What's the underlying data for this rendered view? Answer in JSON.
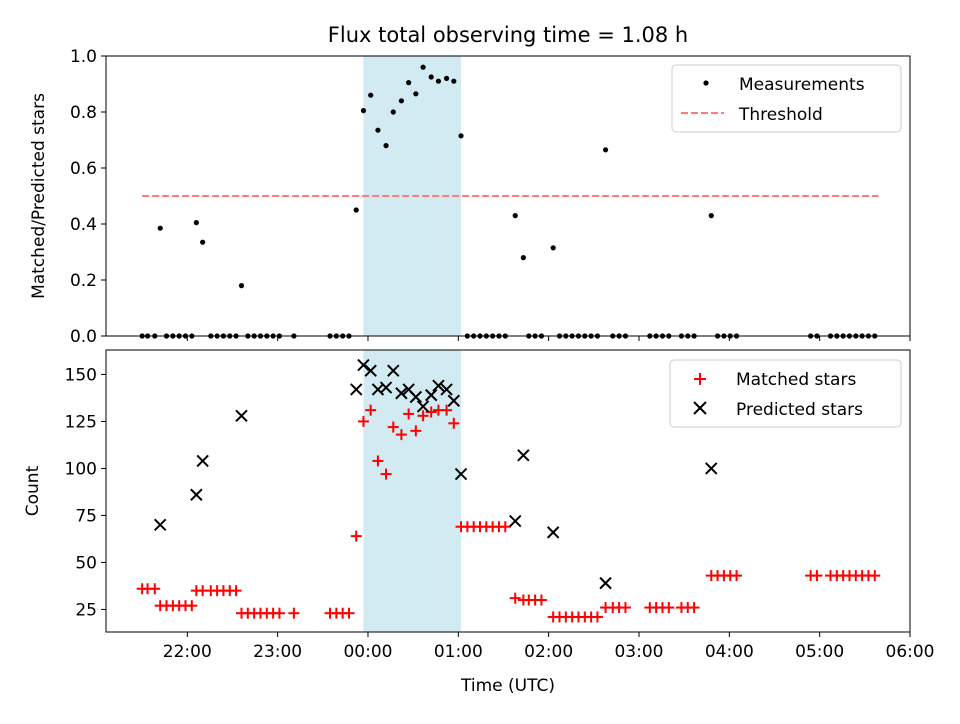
{
  "chart_data": {
    "title": "Flux total observing time = 1.08 h",
    "xlabel": "Time (UTC)",
    "x_unit": "hours relative to 00:00 UTC",
    "xlim": [
      -2.9,
      6.0
    ],
    "x_ticks": [
      {
        "value": -2,
        "label": "22:00"
      },
      {
        "value": -1,
        "label": "23:00"
      },
      {
        "value": 0,
        "label": "00:00"
      },
      {
        "value": 1,
        "label": "01:00"
      },
      {
        "value": 2,
        "label": "02:00"
      },
      {
        "value": 3,
        "label": "03:00"
      },
      {
        "value": 4,
        "label": "04:00"
      },
      {
        "value": 5,
        "label": "05:00"
      },
      {
        "value": 6,
        "label": "06:00"
      }
    ],
    "shaded_span": {
      "start": -0.05,
      "end": 1.03,
      "color": "#add8e6"
    },
    "panels": [
      {
        "id": "ratio",
        "type": "scatter",
        "ylabel": "Matched/Predicted stars",
        "ylim": [
          0,
          1.0
        ],
        "y_ticks": [
          {
            "value": 0.0,
            "label": "0.0"
          },
          {
            "value": 0.2,
            "label": "0.2"
          },
          {
            "value": 0.4,
            "label": "0.4"
          },
          {
            "value": 0.6,
            "label": "0.6"
          },
          {
            "value": 0.8,
            "label": "0.8"
          },
          {
            "value": 1.0,
            "label": "1.0"
          }
        ],
        "legend": [
          {
            "label": "Measurements",
            "marker": "dot",
            "color": "#000000"
          },
          {
            "label": "Threshold",
            "marker": "dashed-line",
            "color": "#ff7b7b"
          }
        ],
        "threshold": {
          "value": 0.5,
          "x_start": -2.5,
          "x_end": 5.65
        },
        "series": [
          {
            "name": "Measurements",
            "color": "#000000",
            "points": [
              [
                -2.5,
                0
              ],
              [
                -2.44,
                0
              ],
              [
                -2.36,
                0
              ],
              [
                -2.3,
                0.385
              ],
              [
                -2.23,
                0
              ],
              [
                -2.16,
                0
              ],
              [
                -2.09,
                0
              ],
              [
                -2.02,
                0
              ],
              [
                -1.95,
                0
              ],
              [
                -1.9,
                0.405
              ],
              [
                -1.83,
                0.335
              ],
              [
                -1.74,
                0
              ],
              [
                -1.67,
                0
              ],
              [
                -1.6,
                0
              ],
              [
                -1.53,
                0
              ],
              [
                -1.46,
                0
              ],
              [
                -1.4,
                0.18
              ],
              [
                -1.33,
                0
              ],
              [
                -1.26,
                0
              ],
              [
                -1.19,
                0
              ],
              [
                -1.12,
                0
              ],
              [
                -1.05,
                0
              ],
              [
                -0.98,
                0
              ],
              [
                -0.82,
                0
              ],
              [
                -0.42,
                0
              ],
              [
                -0.35,
                0
              ],
              [
                -0.28,
                0
              ],
              [
                -0.21,
                0
              ],
              [
                -0.13,
                0.45
              ],
              [
                -0.05,
                0.805
              ],
              [
                0.03,
                0.86
              ],
              [
                0.11,
                0.735
              ],
              [
                0.2,
                0.68
              ],
              [
                0.28,
                0.8
              ],
              [
                0.37,
                0.84
              ],
              [
                0.45,
                0.905
              ],
              [
                0.53,
                0.865
              ],
              [
                0.61,
                0.96
              ],
              [
                0.7,
                0.925
              ],
              [
                0.78,
                0.91
              ],
              [
                0.87,
                0.92
              ],
              [
                0.95,
                0.91
              ],
              [
                1.03,
                0.715
              ],
              [
                1.1,
                0
              ],
              [
                1.17,
                0
              ],
              [
                1.24,
                0
              ],
              [
                1.31,
                0
              ],
              [
                1.38,
                0
              ],
              [
                1.45,
                0
              ],
              [
                1.52,
                0
              ],
              [
                1.63,
                0.43
              ],
              [
                1.72,
                0.28
              ],
              [
                1.78,
                0
              ],
              [
                1.85,
                0
              ],
              [
                1.92,
                0
              ],
              [
                2.05,
                0.315
              ],
              [
                2.12,
                0
              ],
              [
                2.19,
                0
              ],
              [
                2.26,
                0
              ],
              [
                2.33,
                0
              ],
              [
                2.4,
                0
              ],
              [
                2.47,
                0
              ],
              [
                2.54,
                0
              ],
              [
                2.63,
                0.665
              ],
              [
                2.71,
                0
              ],
              [
                2.78,
                0
              ],
              [
                2.85,
                0
              ],
              [
                3.12,
                0
              ],
              [
                3.19,
                0
              ],
              [
                3.26,
                0
              ],
              [
                3.33,
                0
              ],
              [
                3.47,
                0
              ],
              [
                3.54,
                0
              ],
              [
                3.61,
                0
              ],
              [
                3.8,
                0.43
              ],
              [
                3.87,
                0
              ],
              [
                3.94,
                0
              ],
              [
                4.01,
                0
              ],
              [
                4.08,
                0
              ],
              [
                4.9,
                0
              ],
              [
                4.97,
                0
              ],
              [
                5.12,
                0
              ],
              [
                5.19,
                0
              ],
              [
                5.26,
                0
              ],
              [
                5.33,
                0
              ],
              [
                5.4,
                0
              ],
              [
                5.47,
                0
              ],
              [
                5.54,
                0
              ],
              [
                5.61,
                0
              ]
            ]
          }
        ]
      },
      {
        "id": "counts",
        "type": "scatter",
        "ylabel": "Count",
        "ylim": [
          13,
          163
        ],
        "y_ticks": [
          {
            "value": 25,
            "label": "25"
          },
          {
            "value": 50,
            "label": "50"
          },
          {
            "value": 75,
            "label": "75"
          },
          {
            "value": 100,
            "label": "100"
          },
          {
            "value": 125,
            "label": "125"
          },
          {
            "value": 150,
            "label": "150"
          }
        ],
        "legend": [
          {
            "label": "Matched stars",
            "marker": "plus",
            "color": "#ff0000"
          },
          {
            "label": "Predicted stars",
            "marker": "x",
            "color": "#000000"
          }
        ],
        "series": [
          {
            "name": "Matched stars",
            "marker": "plus",
            "color": "#ff0000",
            "points": [
              [
                -2.5,
                36
              ],
              [
                -2.44,
                36
              ],
              [
                -2.36,
                36
              ],
              [
                -2.3,
                27
              ],
              [
                -2.23,
                27
              ],
              [
                -2.16,
                27
              ],
              [
                -2.09,
                27
              ],
              [
                -2.02,
                27
              ],
              [
                -1.95,
                27
              ],
              [
                -1.9,
                35
              ],
              [
                -1.83,
                35
              ],
              [
                -1.74,
                35
              ],
              [
                -1.67,
                35
              ],
              [
                -1.6,
                35
              ],
              [
                -1.53,
                35
              ],
              [
                -1.46,
                35
              ],
              [
                -1.4,
                23
              ],
              [
                -1.33,
                23
              ],
              [
                -1.26,
                23
              ],
              [
                -1.19,
                23
              ],
              [
                -1.12,
                23
              ],
              [
                -1.05,
                23
              ],
              [
                -0.98,
                23
              ],
              [
                -0.82,
                23
              ],
              [
                -0.42,
                23
              ],
              [
                -0.35,
                23
              ],
              [
                -0.28,
                23
              ],
              [
                -0.21,
                23
              ],
              [
                -0.13,
                64
              ],
              [
                -0.05,
                125
              ],
              [
                0.03,
                131
              ],
              [
                0.11,
                104
              ],
              [
                0.2,
                97
              ],
              [
                0.28,
                122
              ],
              [
                0.37,
                118
              ],
              [
                0.45,
                129
              ],
              [
                0.53,
                120
              ],
              [
                0.61,
                128
              ],
              [
                0.7,
                130
              ],
              [
                0.78,
                131
              ],
              [
                0.87,
                131
              ],
              [
                0.95,
                124
              ],
              [
                1.03,
                69
              ],
              [
                1.1,
                69
              ],
              [
                1.17,
                69
              ],
              [
                1.24,
                69
              ],
              [
                1.31,
                69
              ],
              [
                1.38,
                69
              ],
              [
                1.45,
                69
              ],
              [
                1.52,
                69
              ],
              [
                1.63,
                31
              ],
              [
                1.72,
                30
              ],
              [
                1.78,
                30
              ],
              [
                1.85,
                30
              ],
              [
                1.92,
                30
              ],
              [
                2.05,
                21
              ],
              [
                2.12,
                21
              ],
              [
                2.19,
                21
              ],
              [
                2.26,
                21
              ],
              [
                2.33,
                21
              ],
              [
                2.4,
                21
              ],
              [
                2.47,
                21
              ],
              [
                2.54,
                21
              ],
              [
                2.63,
                26
              ],
              [
                2.71,
                26
              ],
              [
                2.78,
                26
              ],
              [
                2.85,
                26
              ],
              [
                3.12,
                26
              ],
              [
                3.19,
                26
              ],
              [
                3.26,
                26
              ],
              [
                3.33,
                26
              ],
              [
                3.47,
                26
              ],
              [
                3.54,
                26
              ],
              [
                3.61,
                26
              ],
              [
                3.8,
                43
              ],
              [
                3.87,
                43
              ],
              [
                3.94,
                43
              ],
              [
                4.01,
                43
              ],
              [
                4.08,
                43
              ],
              [
                4.9,
                43
              ],
              [
                4.97,
                43
              ],
              [
                5.12,
                43
              ],
              [
                5.19,
                43
              ],
              [
                5.26,
                43
              ],
              [
                5.33,
                43
              ],
              [
                5.4,
                43
              ],
              [
                5.47,
                43
              ],
              [
                5.54,
                43
              ],
              [
                5.61,
                43
              ]
            ]
          },
          {
            "name": "Predicted stars",
            "marker": "x",
            "color": "#000000",
            "points": [
              [
                -2.3,
                70
              ],
              [
                -1.9,
                86
              ],
              [
                -1.83,
                104
              ],
              [
                -1.4,
                128
              ],
              [
                -0.13,
                142
              ],
              [
                -0.05,
                155
              ],
              [
                0.03,
                152
              ],
              [
                0.11,
                142
              ],
              [
                0.2,
                143
              ],
              [
                0.28,
                152
              ],
              [
                0.37,
                140
              ],
              [
                0.45,
                142
              ],
              [
                0.53,
                138
              ],
              [
                0.61,
                133
              ],
              [
                0.7,
                139
              ],
              [
                0.78,
                144
              ],
              [
                0.87,
                142
              ],
              [
                0.95,
                136
              ],
              [
                1.03,
                97
              ],
              [
                1.63,
                72
              ],
              [
                1.72,
                107
              ],
              [
                2.05,
                66
              ],
              [
                2.63,
                39
              ],
              [
                3.8,
                100
              ]
            ]
          }
        ]
      }
    ]
  }
}
